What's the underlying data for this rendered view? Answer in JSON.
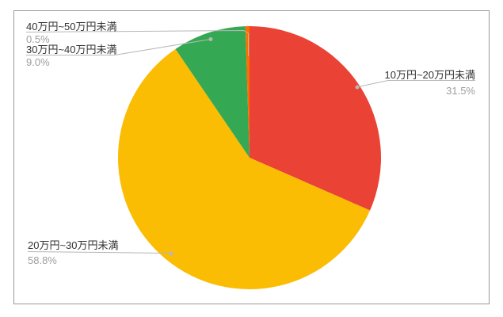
{
  "chart_data": {
    "type": "pie",
    "title": "",
    "legend_position": "labeled",
    "unit": "%",
    "slices": [
      {
        "label": "10万円~20万円未満",
        "value": 31.5,
        "display": "31.5%",
        "color": "#EA4335"
      },
      {
        "label": "20万円~30万円未満",
        "value": 58.8,
        "display": "58.8%",
        "color": "#FBBC04"
      },
      {
        "label": "30万円~40万円未満",
        "value": 9.0,
        "display": "9.0%",
        "color": "#34A853"
      },
      {
        "label": "40万円~50万円未満",
        "value": 0.5,
        "display": "0.5%",
        "color": "#FF6D01"
      }
    ]
  },
  "style": {
    "leader_line_color": "#b7b7b7",
    "label_text_color": "#333333",
    "percent_text_color": "#9e9e9e",
    "frame_border_color": "#9a9a9a",
    "background_color": "#ffffff"
  }
}
